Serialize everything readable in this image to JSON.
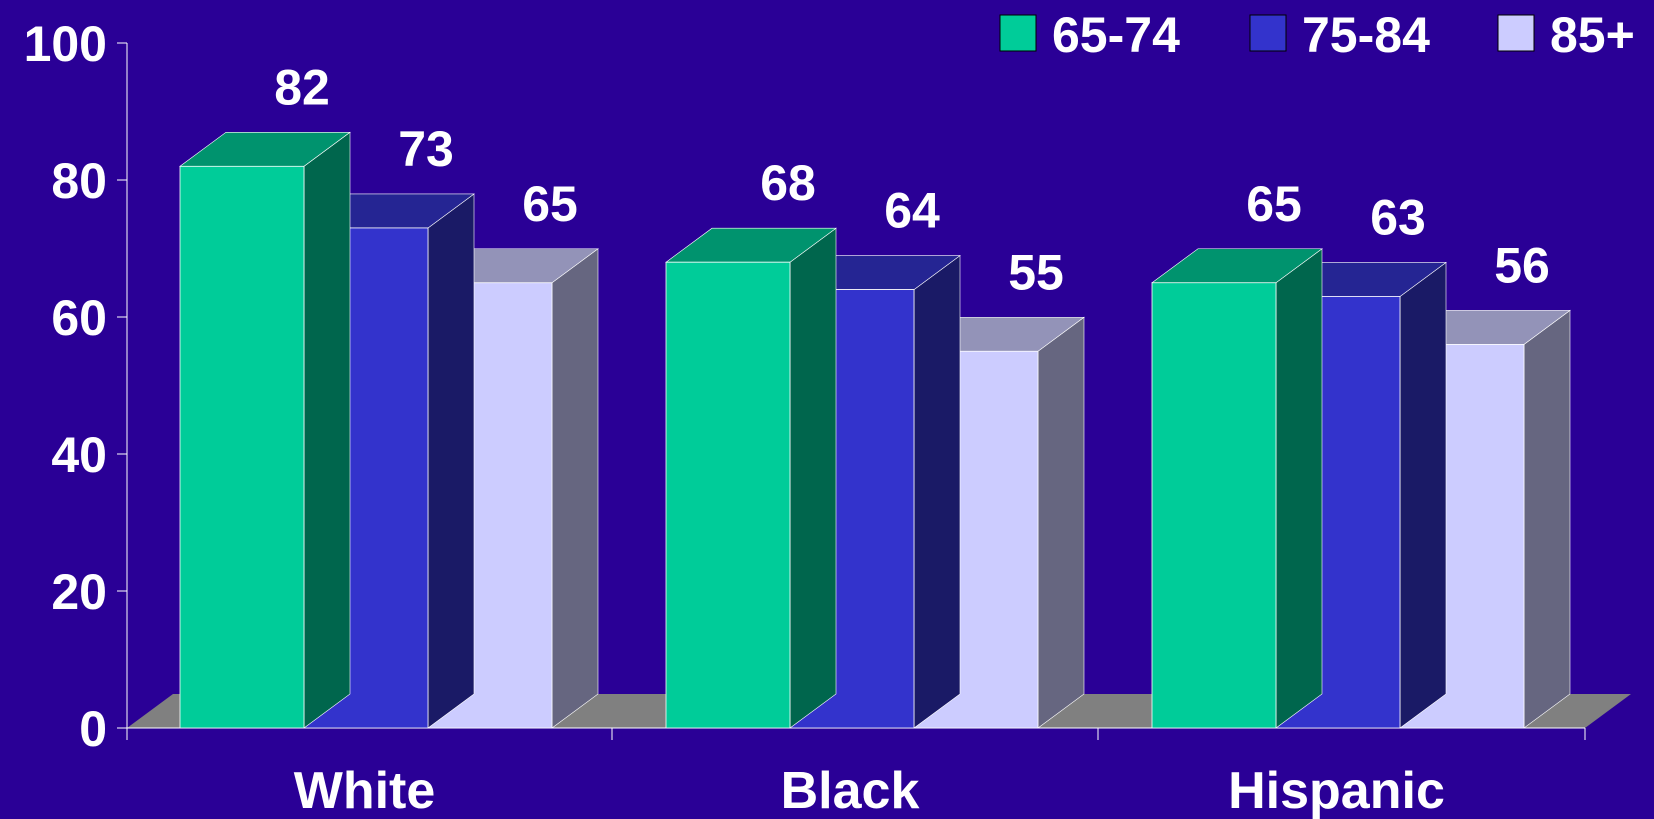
{
  "chart_data": {
    "type": "bar",
    "categories": [
      "White",
      "Black",
      "Hispanic"
    ],
    "series": [
      {
        "name": "65-74",
        "values": [
          82,
          68,
          65
        ],
        "color": "#00cc99"
      },
      {
        "name": "75-84",
        "values": [
          73,
          64,
          63
        ],
        "color": "#3333cc"
      },
      {
        "name": "85+",
        "values": [
          65,
          55,
          56
        ],
        "color": "#ccccff"
      }
    ],
    "title": "",
    "xlabel": "",
    "ylabel": "",
    "ylim": [
      0,
      100
    ],
    "yticks": [
      0,
      20,
      40,
      60,
      80,
      100
    ],
    "grid": false,
    "legend": "top-right",
    "three_d": true,
    "floor_color": "#808080",
    "background": "#2a0096"
  }
}
